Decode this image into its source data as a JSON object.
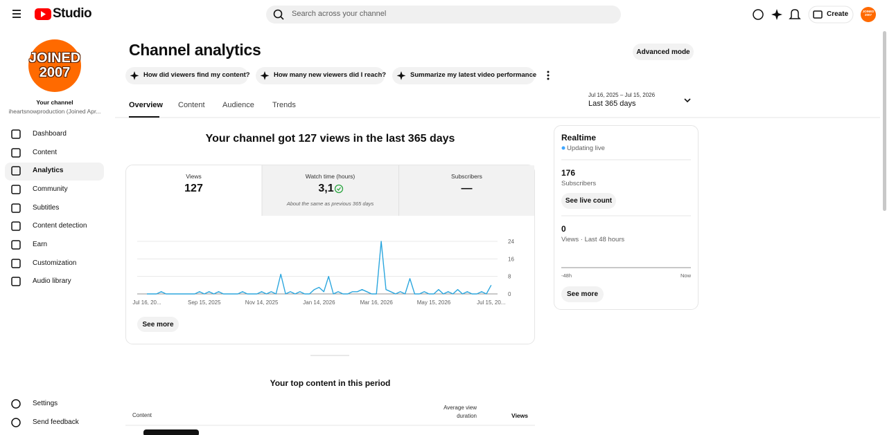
{
  "header": {
    "logo": "Studio",
    "search_placeholder": "Search across your channel",
    "create": "Create"
  },
  "avatar": {
    "line1": "JOINED",
    "line2": "2007"
  },
  "sidebar": {
    "channel_label": "Your channel",
    "channel_name": "iheartsnowproduction (Joined Apr...",
    "nav": [
      "Dashboard",
      "Content",
      "Analytics",
      "Community",
      "Subtitles",
      "Content detection",
      "Earn",
      "Customization",
      "Audio library"
    ],
    "footer": [
      "Settings",
      "Send feedback"
    ]
  },
  "page": {
    "title": "Channel analytics",
    "advanced_mode": "Advanced mode",
    "suggestions": [
      "How did viewers find my content?",
      "How many new viewers did I reach?",
      "Summarize my latest video performance"
    ],
    "date_range": "Jul 16, 2025 – Jul 15, 2026",
    "period": "Last 365 days",
    "tabs": [
      "Overview",
      "Content",
      "Audience",
      "Trends"
    ],
    "headline": "Your channel got 127 views in the last 365 days"
  },
  "metrics": [
    {
      "label": "Views",
      "value": 127
    },
    {
      "label": "Watch time (hours)",
      "value": "3,1",
      "note": "About the same as previous 365 days"
    },
    {
      "label": "Subscribers",
      "value": "—"
    }
  ],
  "chart_data": {
    "type": "line",
    "categories": [
      "Jul 16, 20...",
      null,
      null,
      null,
      null,
      null,
      null,
      null,
      null,
      null,
      null,
      null,
      "Sep 15, 2025",
      null,
      null,
      null,
      null,
      null,
      null,
      null,
      null,
      null,
      null,
      null,
      "Nov 14, 2025",
      null,
      null,
      null,
      null,
      null,
      null,
      null,
      null,
      null,
      null,
      null,
      "Jan 14, 2026",
      null,
      null,
      null,
      null,
      null,
      null,
      null,
      null,
      null,
      null,
      null,
      "Mar 16, 2026",
      null,
      null,
      null,
      null,
      null,
      null,
      null,
      null,
      null,
      null,
      null,
      "May 15, 2026",
      null,
      null,
      null,
      null,
      null,
      null,
      null,
      null,
      null,
      null,
      null,
      "Jul 15, 20..."
    ],
    "values": [
      0,
      0,
      0,
      1,
      0,
      0,
      0,
      0,
      0,
      0,
      0,
      1,
      0,
      1,
      0,
      1,
      0,
      0,
      0,
      0,
      1,
      0,
      0,
      0,
      1,
      0,
      1,
      0,
      9,
      0,
      1,
      0,
      1,
      0,
      0,
      2,
      3,
      1,
      8,
      0,
      1,
      0,
      0,
      1,
      1,
      2,
      1,
      0,
      0,
      24,
      2,
      1,
      0,
      1,
      0,
      7,
      0,
      0,
      1,
      0,
      0,
      2,
      0,
      1,
      0,
      2,
      0,
      1,
      0,
      0,
      1,
      0,
      4
    ],
    "color": "#2ba6de",
    "ylim": [
      0,
      24
    ],
    "yticks": [
      0,
      8,
      16,
      24
    ],
    "grid": true
  },
  "chart_see_more": "See more",
  "realtime": {
    "title": "Realtime",
    "status": "Updating live",
    "subscribers": 176,
    "subscribers_label": "Subscribers",
    "live_button": "See live count",
    "views": 0,
    "views_label": "Views · Last 48 hours",
    "start": "-48h",
    "end": "Now",
    "see_more": "See more"
  },
  "top_content": {
    "title": "Your top content in this period",
    "columns": [
      "Content",
      "Average view duration",
      "Views"
    ]
  }
}
